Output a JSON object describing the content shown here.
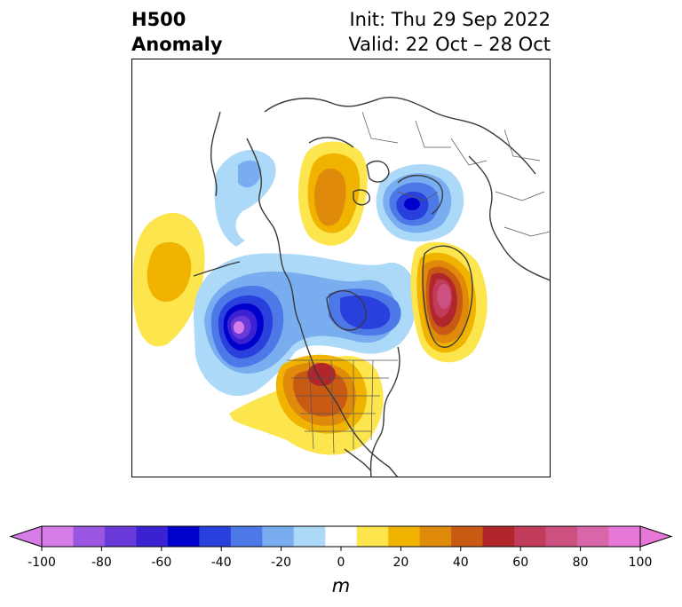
{
  "title": {
    "left_line1": "H500",
    "left_line2": "Anomaly",
    "right_line1": "Init: Thu 29 Sep 2022",
    "right_line2": "Valid: 22 Oct – 28 Oct"
  },
  "colorbar": {
    "unit": "m",
    "ticks": [
      "-100",
      "-80",
      "-60",
      "-40",
      "-20",
      "0",
      "20",
      "40",
      "60",
      "80",
      "100"
    ],
    "levels": [
      -100,
      -90,
      -80,
      -70,
      -60,
      -50,
      -40,
      -30,
      -20,
      -10,
      10,
      20,
      30,
      40,
      50,
      60,
      70,
      80,
      90,
      100
    ],
    "colors": [
      "#d77ce9",
      "#9a56e0",
      "#6a3ad8",
      "#3a22d2",
      "#0000cc",
      "#2a40dc",
      "#4d78e8",
      "#78aef0",
      "#acd9f8",
      "#ffffff",
      "#fde54e",
      "#f0b400",
      "#e08a0c",
      "#c85a14",
      "#b0262a",
      "#c03c5a",
      "#cc5080",
      "#d866a8",
      "#e878d8"
    ]
  },
  "anomalies": [
    {
      "name": "pacific-positive",
      "value": 20
    },
    {
      "name": "gulf-of-alaska-negative",
      "value": -90
    },
    {
      "name": "canada-negative",
      "value": -50
    },
    {
      "name": "us-positive",
      "value": 60
    },
    {
      "name": "greenland-positive",
      "value": 90
    },
    {
      "name": "siberia-positive",
      "value": 40
    },
    {
      "name": "scandinavia-negative",
      "value": -60
    },
    {
      "name": "bering-negative",
      "value": -20
    }
  ]
}
